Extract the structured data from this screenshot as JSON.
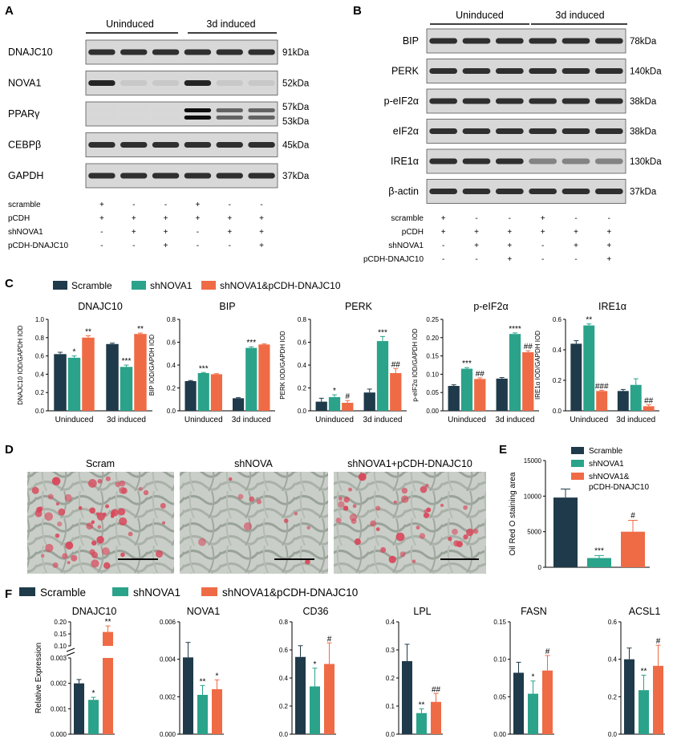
{
  "colors": {
    "scramble": "#1f3a4a",
    "shnova1": "#2aa38a",
    "rescue": "#ef6b46"
  },
  "panelA": {
    "label": "A",
    "headers": [
      "Uninduced",
      "3d induced"
    ],
    "rows": [
      {
        "name": "DNAJC10",
        "kda": "91kDa",
        "pattern": "even"
      },
      {
        "name": "NOVA1",
        "kda": "52kDa",
        "pattern": "nova"
      },
      {
        "name": "PPARγ",
        "kda": "57kDa",
        "kda2": "53kDa",
        "pattern": "ppar"
      },
      {
        "name": "CEBPβ",
        "kda": "45kDa",
        "pattern": "even"
      },
      {
        "name": "GAPDH",
        "kda": "37kDa",
        "pattern": "even"
      }
    ],
    "conditions": [
      {
        "name": "scramble",
        "signs": [
          "+",
          "-",
          "-",
          "+",
          "-",
          "-"
        ]
      },
      {
        "name": "pCDH",
        "signs": [
          "+",
          "+",
          "+",
          "+",
          "+",
          "+"
        ]
      },
      {
        "name": "shNOVA1",
        "signs": [
          "-",
          "+",
          "+",
          "-",
          "+",
          "+"
        ]
      },
      {
        "name": "pCDH-DNAJC10",
        "signs": [
          "-",
          "-",
          "+",
          "-",
          "-",
          "+"
        ]
      }
    ]
  },
  "panelB": {
    "label": "B",
    "headers": [
      "Uninduced",
      "3d induced"
    ],
    "rows": [
      {
        "name": "BIP",
        "kda": "78kDa"
      },
      {
        "name": "PERK",
        "kda": "140kDa"
      },
      {
        "name": "p-eIF2α",
        "kda": "38kDa"
      },
      {
        "name": "eIF2α",
        "kda": "38kDa"
      },
      {
        "name": "IRE1α",
        "kda": "130kDa"
      },
      {
        "name": "β-actin",
        "kda": "37kDa"
      }
    ],
    "conditions": [
      {
        "name": "scramble",
        "signs": [
          "+",
          "-",
          "-",
          "+",
          "-",
          "-"
        ]
      },
      {
        "name": "pCDH",
        "signs": [
          "+",
          "+",
          "+",
          "+",
          "+",
          "+"
        ]
      },
      {
        "name": "shNOVA1",
        "signs": [
          "-",
          "+",
          "+",
          "-",
          "+",
          "+"
        ]
      },
      {
        "name": "pCDH-DNAJC10",
        "signs": [
          "-",
          "-",
          "+",
          "-",
          "-",
          "+"
        ]
      }
    ]
  },
  "panelC": {
    "label": "C",
    "legend": [
      "Scramble",
      "shNOVA1",
      "shNOVA1&pCDH-DNAJC10"
    ]
  },
  "panelD": {
    "label": "D",
    "titles": [
      "Scram",
      "shNOVA",
      "shNOVA1+pCDH-DNAJC10"
    ]
  },
  "panelE": {
    "label": "E",
    "legend": [
      "Scramble",
      "shNOVA1",
      "shNOVA1&",
      "pCDH-DNAJC10"
    ]
  },
  "panelF": {
    "label": "F",
    "legend": [
      "Scramble",
      "shNOVA1",
      "shNOVA1&pCDH-DNAJC10"
    ]
  },
  "chart_data": [
    {
      "panel": "C",
      "type": "bar",
      "title": "DNAJC10",
      "ylabel": "DNAJC10 IOD/GAPDH IOD",
      "categories": [
        "Uninduced",
        "3d induced"
      ],
      "ylim": [
        0,
        1.0
      ],
      "yticks": [
        0.0,
        0.2,
        0.4,
        0.6,
        0.8,
        1.0
      ],
      "yticklabels": [
        "0.0",
        "0.2",
        "0.4",
        "0.6",
        "0.8",
        "1.0"
      ],
      "series": [
        {
          "name": "Scramble",
          "values": [
            0.62,
            0.73
          ],
          "errors": [
            0.02,
            0.01
          ]
        },
        {
          "name": "shNOVA1",
          "values": [
            0.58,
            0.48
          ],
          "errors": [
            0.02,
            0.02
          ]
        },
        {
          "name": "shNOVA1&pCDH-DNAJC10",
          "values": [
            0.8,
            0.84
          ],
          "errors": [
            0.02,
            0.01
          ]
        }
      ],
      "annotations": [
        [
          "",
          "*",
          "**"
        ],
        [
          "",
          "***",
          "**"
        ]
      ]
    },
    {
      "panel": "C",
      "type": "bar",
      "title": "BIP",
      "ylabel": "BIP IOD/GAPDH IOD",
      "categories": [
        "Uninduced",
        "3d induced"
      ],
      "ylim": [
        0,
        0.8
      ],
      "yticks": [
        0.0,
        0.2,
        0.4,
        0.6,
        0.8
      ],
      "yticklabels": [
        "0.0",
        "0.2",
        "0.4",
        "0.6",
        "0.8"
      ],
      "series": [
        {
          "name": "Scramble",
          "values": [
            0.26,
            0.11
          ],
          "errors": [
            0.005,
            0.005
          ]
        },
        {
          "name": "shNOVA1",
          "values": [
            0.33,
            0.55
          ],
          "errors": [
            0.005,
            0.01
          ]
        },
        {
          "name": "shNOVA1&pCDH-DNAJC10",
          "values": [
            0.32,
            0.58
          ],
          "errors": [
            0.005,
            0.005
          ]
        }
      ],
      "annotations": [
        [
          "",
          "***",
          ""
        ],
        [
          "",
          "***",
          ""
        ]
      ]
    },
    {
      "panel": "C",
      "type": "bar",
      "title": "PERK",
      "ylabel": "PERK IOD/GAPDH IOD",
      "categories": [
        "Uninduced",
        "3d induced"
      ],
      "ylim": [
        0,
        0.8
      ],
      "yticks": [
        0.0,
        0.2,
        0.4,
        0.6,
        0.8
      ],
      "yticklabels": [
        "0.0",
        "0.2",
        "0.4",
        "0.6",
        "0.8"
      ],
      "series": [
        {
          "name": "Scramble",
          "values": [
            0.08,
            0.16
          ],
          "errors": [
            0.03,
            0.03
          ]
        },
        {
          "name": "shNOVA1",
          "values": [
            0.12,
            0.61
          ],
          "errors": [
            0.02,
            0.04
          ]
        },
        {
          "name": "shNOVA1&pCDH-DNAJC10",
          "values": [
            0.07,
            0.33
          ],
          "errors": [
            0.02,
            0.04
          ]
        }
      ],
      "annotations": [
        [
          "",
          "*",
          "#"
        ],
        [
          "",
          "***",
          "##"
        ]
      ]
    },
    {
      "panel": "C",
      "type": "bar",
      "title": "p-eIF2α",
      "ylabel": "p-eIF2α IOD/GAPDH IOD",
      "categories": [
        "Uninduced",
        "3d induced"
      ],
      "ylim": [
        0,
        0.25
      ],
      "yticks": [
        0.0,
        0.05,
        0.1,
        0.15,
        0.2,
        0.25
      ],
      "yticklabels": [
        "0.00",
        "0.05",
        "0.10",
        "0.15",
        "0.20",
        "0.25"
      ],
      "series": [
        {
          "name": "Scramble",
          "values": [
            0.068,
            0.088
          ],
          "errors": [
            0.003,
            0.003
          ]
        },
        {
          "name": "shNOVA1",
          "values": [
            0.115,
            0.21
          ],
          "errors": [
            0.003,
            0.003
          ]
        },
        {
          "name": "shNOVA1&pCDH-DNAJC10",
          "values": [
            0.087,
            0.16
          ],
          "errors": [
            0.003,
            0.004
          ]
        }
      ],
      "annotations": [
        [
          "",
          "***",
          "##"
        ],
        [
          "",
          "****",
          "##"
        ]
      ]
    },
    {
      "panel": "C",
      "type": "bar",
      "title": "IRE1α",
      "ylabel": "IRE1α IOD/GAPDH IOD",
      "categories": [
        "Uninduced",
        "3d induced"
      ],
      "ylim": [
        0,
        0.6
      ],
      "yticks": [
        0.0,
        0.2,
        0.4,
        0.6
      ],
      "yticklabels": [
        "0.0",
        "0.2",
        "0.4",
        "0.6"
      ],
      "series": [
        {
          "name": "Scramble",
          "values": [
            0.44,
            0.13
          ],
          "errors": [
            0.02,
            0.01
          ]
        },
        {
          "name": "shNOVA1",
          "values": [
            0.56,
            0.17
          ],
          "errors": [
            0.01,
            0.04
          ]
        },
        {
          "name": "shNOVA1&pCDH-DNAJC10",
          "values": [
            0.13,
            0.03
          ],
          "errors": [
            0.005,
            0.01
          ]
        }
      ],
      "annotations": [
        [
          "",
          "**",
          "###"
        ],
        [
          "",
          "",
          "##"
        ]
      ]
    },
    {
      "panel": "E",
      "type": "bar",
      "title": "",
      "ylabel": "Oil Red O staining area",
      "categories": [
        "Scramble",
        "shNOVA1",
        "shNOVA1& pCDH-DNAJC10"
      ],
      "ylim": [
        0,
        15000
      ],
      "yticks": [
        0,
        5000,
        10000,
        15000
      ],
      "yticklabels": [
        "0",
        "5000",
        "10000",
        "15000"
      ],
      "values": [
        9800,
        1300,
        5000
      ],
      "errors": [
        1200,
        350,
        1600
      ],
      "annotations": [
        "",
        "***",
        "#"
      ]
    },
    {
      "panel": "F",
      "type": "bar",
      "title": "DNAJC10",
      "ylabel": "Relative Expression",
      "broken_axis": true,
      "lower_ylim": [
        0,
        0.003
      ],
      "upper_ylim": [
        0.1,
        0.2
      ],
      "lower_yticks": [
        0,
        0.001,
        0.002,
        0.003
      ],
      "lower_yticklabels": [
        "0.000",
        "0.001",
        "0.002",
        "0.003"
      ],
      "upper_yticks": [
        0.1,
        0.15,
        0.2
      ],
      "upper_yticklabels": [
        "0.10",
        "0.15",
        "0.20"
      ],
      "categories": [
        "Scramble",
        "shNOVA1",
        "shNOVA1&pCDH-DNAJC10"
      ],
      "values": [
        0.002,
        0.00135,
        0.158
      ],
      "errors": [
        0.00015,
        0.0001,
        0.025
      ],
      "annotations": [
        "",
        "*",
        "**"
      ]
    },
    {
      "panel": "F",
      "type": "bar",
      "title": "NOVA1",
      "ylabel": "",
      "ylim": [
        0,
        0.006
      ],
      "yticks": [
        0,
        0.002,
        0.004,
        0.006
      ],
      "yticklabels": [
        "0.000",
        "0.002",
        "0.004",
        "0.006"
      ],
      "categories": [
        "Scramble",
        "shNOVA1",
        "shNOVA1&pCDH-DNAJC10"
      ],
      "values": [
        0.0041,
        0.0021,
        0.0024
      ],
      "errors": [
        0.0008,
        0.0005,
        0.0005
      ],
      "annotations": [
        "",
        "**",
        "*"
      ]
    },
    {
      "panel": "F",
      "type": "bar",
      "title": "CD36",
      "ylabel": "",
      "ylim": [
        0,
        0.8
      ],
      "yticks": [
        0,
        0.2,
        0.4,
        0.6,
        0.8
      ],
      "yticklabels": [
        "0.0",
        "0.2",
        "0.4",
        "0.6",
        "0.8"
      ],
      "categories": [
        "Scramble",
        "shNOVA1",
        "shNOVA1&pCDH-DNAJC10"
      ],
      "values": [
        0.55,
        0.34,
        0.5
      ],
      "errors": [
        0.08,
        0.13,
        0.15
      ],
      "annotations": [
        "",
        "*",
        "#"
      ]
    },
    {
      "panel": "F",
      "type": "bar",
      "title": "LPL",
      "ylabel": "",
      "ylim": [
        0,
        0.4
      ],
      "yticks": [
        0,
        0.1,
        0.2,
        0.3,
        0.4
      ],
      "yticklabels": [
        "0.0",
        "0.1",
        "0.2",
        "0.3",
        "0.4"
      ],
      "categories": [
        "Scramble",
        "shNOVA1",
        "shNOVA1&pCDH-DNAJC10"
      ],
      "values": [
        0.26,
        0.075,
        0.115
      ],
      "errors": [
        0.06,
        0.015,
        0.03
      ],
      "annotations": [
        "",
        "**",
        "##"
      ]
    },
    {
      "panel": "F",
      "type": "bar",
      "title": "FASN",
      "ylabel": "",
      "ylim": [
        0,
        0.15
      ],
      "yticks": [
        0,
        0.05,
        0.1,
        0.15
      ],
      "yticklabels": [
        "0.00",
        "0.05",
        "0.10",
        "0.15"
      ],
      "categories": [
        "Scramble",
        "shNOVA1",
        "shNOVA1&pCDH-DNAJC10"
      ],
      "values": [
        0.082,
        0.054,
        0.085
      ],
      "errors": [
        0.014,
        0.017,
        0.02
      ],
      "annotations": [
        "",
        "*",
        "#"
      ]
    },
    {
      "panel": "F",
      "type": "bar",
      "title": "ACSL1",
      "ylabel": "",
      "ylim": [
        0,
        0.6
      ],
      "yticks": [
        0,
        0.2,
        0.4,
        0.6
      ],
      "yticklabels": [
        "0.0",
        "0.2",
        "0.4",
        "0.6"
      ],
      "categories": [
        "Scramble",
        "shNOVA1",
        "shNOVA1&pCDH-DNAJC10"
      ],
      "values": [
        0.4,
        0.235,
        0.365
      ],
      "errors": [
        0.06,
        0.08,
        0.11
      ],
      "annotations": [
        "",
        "**",
        "#"
      ]
    }
  ]
}
